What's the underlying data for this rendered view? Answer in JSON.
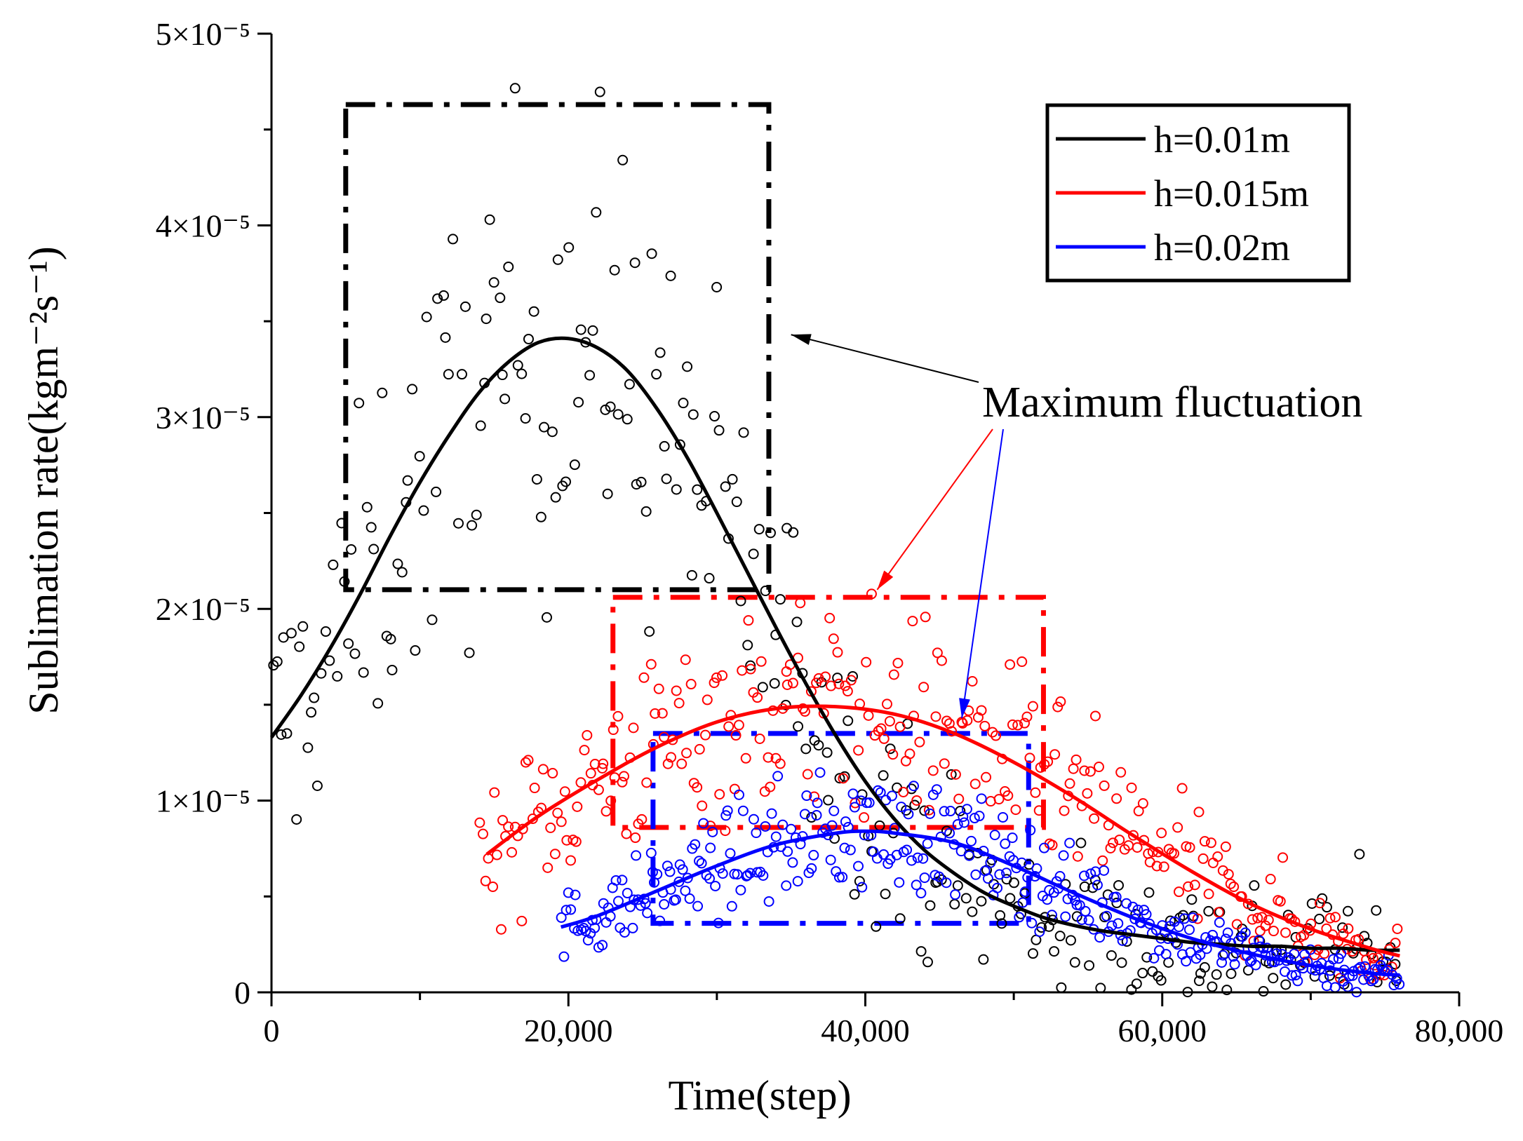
{
  "chart_data": {
    "type": "scatter",
    "title": "",
    "xlabel": "Time(step)",
    "ylabel": "Sublimation rate(kgm⁻²s⁻¹)",
    "xlim": [
      0,
      80000
    ],
    "ylim": [
      0,
      5e-05
    ],
    "x_ticks": [
      0,
      20000,
      40000,
      60000,
      80000
    ],
    "x_tick_labels": [
      "0",
      "20,000",
      "40,000",
      "60,000",
      "80,000"
    ],
    "y_ticks": [
      0,
      1e-05,
      2e-05,
      3e-05,
      4e-05,
      5e-05
    ],
    "y_tick_labels": [
      "0",
      "1×10⁻⁵",
      "2×10⁻⁵",
      "3×10⁻⁵",
      "4×10⁻⁵",
      "5×10⁻⁵"
    ],
    "grid": false,
    "legend_position": "top-right",
    "series": [
      {
        "name": "h=0.01m",
        "color": "#000000",
        "fit": {
          "x": [
            0,
            2000,
            4000,
            6000,
            8000,
            10000,
            12000,
            14000,
            16000,
            18000,
            20000,
            22000,
            24000,
            26000,
            28000,
            30000,
            32000,
            34000,
            36000,
            38000,
            40000,
            42000,
            44000,
            46000,
            48000,
            50000,
            52000,
            54000,
            56000,
            58000,
            60000,
            62000,
            64000,
            66000,
            68000,
            70000,
            72000,
            74000,
            76000
          ],
          "y": [
            1.33e-05,
            1.55e-05,
            1.8e-05,
            2.08e-05,
            2.38e-05,
            2.66e-05,
            2.91e-05,
            3.13e-05,
            3.29e-05,
            3.39e-05,
            3.41e-05,
            3.36e-05,
            3.24e-05,
            3.04e-05,
            2.79e-05,
            2.5e-05,
            2.2e-05,
            1.9e-05,
            1.61e-05,
            1.34e-05,
            1.1e-05,
            9e-06,
            7.4e-06,
            6.2e-06,
            5.2e-06,
            4.5e-06,
            3.9e-06,
            3.5e-06,
            3.2e-06,
            3e-06,
            2.8e-06,
            2.6e-06,
            2.5e-06,
            2.4e-06,
            2.4e-06,
            2.3e-06,
            2.3e-06,
            2.2e-06,
            2.2e-06
          ]
        },
        "scatter": {
          "x_range": [
            0,
            76000
          ],
          "count": 300,
          "spread_peak": 9e-06
        }
      },
      {
        "name": "h=0.015m",
        "color": "#ff0000",
        "fit": {
          "x": [
            14500,
            18000,
            22000,
            26000,
            30000,
            34000,
            38000,
            42000,
            46000,
            50000,
            54000,
            58000,
            62000,
            66000,
            70000,
            74000,
            76000
          ],
          "y": [
            7.2e-06,
            9.2e-06,
            1.11e-05,
            1.28e-05,
            1.41e-05,
            1.48e-05,
            1.49e-05,
            1.45e-05,
            1.35e-05,
            1.2e-05,
            1.02e-05,
            8.2e-06,
            6.3e-06,
            4.6e-06,
            3.3e-06,
            2.3e-06,
            1.9e-06
          ]
        },
        "scatter": {
          "x_range": [
            14000,
            76000
          ],
          "count": 320,
          "spread_peak": 4e-06
        }
      },
      {
        "name": "h=0.02m",
        "color": "#0000ff",
        "fit": {
          "x": [
            19500,
            22000,
            26000,
            30000,
            34000,
            38000,
            40000,
            42000,
            46000,
            50000,
            54000,
            58000,
            62000,
            66000,
            70000,
            74000,
            76000
          ],
          "y": [
            3.4e-06,
            4e-06,
            5.3e-06,
            6.6e-06,
            7.7e-06,
            8.3e-06,
            8.4e-06,
            8.3e-06,
            7.8e-06,
            6.6e-06,
            5.2e-06,
            3.9e-06,
            2.8e-06,
            2e-06,
            1.4e-06,
            1e-06,
            9e-07
          ]
        },
        "scatter": {
          "x_range": [
            19500,
            76000
          ],
          "count": 360,
          "spread_peak": 2.2e-06
        }
      }
    ],
    "highlight_boxes": [
      {
        "series": "h=0.01m",
        "color": "#000000",
        "x": [
          5000,
          33500
        ],
        "y": [
          2.1e-05,
          4.63e-05
        ]
      },
      {
        "series": "h=0.015m",
        "color": "#ff0000",
        "x": [
          23000,
          52000
        ],
        "y": [
          8.6e-06,
          2.06e-05
        ]
      },
      {
        "series": "h=0.02m",
        "color": "#0000ff",
        "x": [
          25700,
          51000
        ],
        "y": [
          3.6e-06,
          1.35e-05
        ]
      }
    ],
    "annotation": {
      "text": "Maximum fluctuation",
      "arrows": [
        {
          "color": "#000000",
          "to": [
            35000,
            3.43e-05
          ]
        },
        {
          "color": "#ff0000",
          "to": [
            40800,
            2.1e-05
          ]
        },
        {
          "color": "#0000ff",
          "to": [
            46500,
            1.43e-05
          ]
        }
      ]
    }
  }
}
